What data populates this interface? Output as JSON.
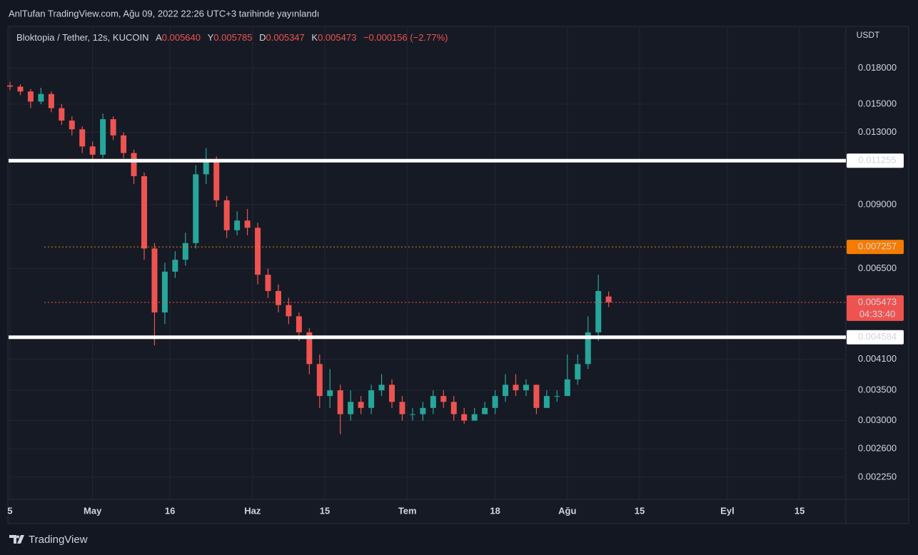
{
  "header": {
    "publisher": "AnlTufan TradingView.com, Ağu 09, 2022 22:26 UTC+3 tarihinde yayınlandı"
  },
  "footer": {
    "brand": "TradingView"
  },
  "chart_data": {
    "type": "candlestick",
    "symbol": "Bloktopia / Tether, 12s, KUCOIN",
    "legend": {
      "open_label": "A",
      "open": "0.005640",
      "high_label": "Y",
      "high": "0.005785",
      "low_label": "D",
      "low": "0.005347",
      "close_label": "K",
      "close": "0.005473",
      "change": "−0.000156 (−2.77%)"
    },
    "y_unit": "USDT",
    "log_scale": true,
    "grid": true,
    "up_color": "#26a69a",
    "down_color": "#ef5350",
    "x": [
      105,
      107,
      109,
      111,
      113,
      115,
      117,
      119,
      121,
      123,
      125,
      127,
      129,
      131,
      133,
      135,
      137,
      139,
      141,
      143,
      145,
      147,
      149,
      151,
      153,
      155,
      157,
      159,
      161,
      163,
      165,
      167,
      169,
      171,
      173,
      175,
      177,
      179,
      181,
      183,
      185,
      187,
      189,
      191,
      193,
      195,
      197,
      199,
      201,
      203,
      205,
      207,
      209,
      211,
      213,
      215,
      217,
      219,
      221
    ],
    "open": [
      0.0165,
      0.0164,
      0.016,
      0.0152,
      0.0158,
      0.0147,
      0.0138,
      0.0132,
      0.0121,
      0.0116,
      0.0139,
      0.0128,
      0.0117,
      0.0104,
      0.0072,
      0.0052,
      0.0064,
      0.0068,
      0.0074,
      0.0105,
      0.0112,
      0.0092,
      0.0079,
      0.0083,
      0.008,
      0.0063,
      0.0058,
      0.0054,
      0.0051,
      0.0047,
      0.004,
      0.0034,
      0.0035,
      0.0031,
      0.0033,
      0.0032,
      0.0035,
      0.0036,
      0.0033,
      0.0031,
      0.0031,
      0.0032,
      0.0034,
      0.0033,
      0.0031,
      0.003,
      0.0031,
      0.0032,
      0.0034,
      0.0036,
      0.0035,
      0.0036,
      0.0032,
      0.0034,
      0.0034,
      0.0037,
      0.004,
      0.0047,
      0.00564
    ],
    "high": [
      0.0168,
      0.0166,
      0.0162,
      0.0163,
      0.016,
      0.015,
      0.0141,
      0.0134,
      0.0124,
      0.0143,
      0.0141,
      0.013,
      0.0119,
      0.0106,
      0.0074,
      0.0067,
      0.0071,
      0.0078,
      0.011,
      0.012,
      0.0115,
      0.0094,
      0.0087,
      0.0088,
      0.0082,
      0.0065,
      0.006,
      0.0056,
      0.0052,
      0.0048,
      0.0042,
      0.0039,
      0.0036,
      0.0035,
      0.0034,
      0.0036,
      0.0038,
      0.0037,
      0.0034,
      0.0032,
      0.0033,
      0.0035,
      0.0035,
      0.0034,
      0.0032,
      0.0032,
      0.0033,
      0.0035,
      0.0038,
      0.0038,
      0.0037,
      0.0036,
      0.0035,
      0.0035,
      0.0042,
      0.0042,
      0.0051,
      0.0063,
      0.005785
    ],
    "low": [
      0.0161,
      0.0157,
      0.0147,
      0.015,
      0.0144,
      0.0135,
      0.0128,
      0.0117,
      0.0113,
      0.0114,
      0.0125,
      0.0114,
      0.01,
      0.0068,
      0.0044,
      0.0049,
      0.0062,
      0.0066,
      0.0072,
      0.01,
      0.0089,
      0.0076,
      0.0077,
      0.0077,
      0.006,
      0.0056,
      0.0052,
      0.0049,
      0.0045,
      0.0038,
      0.0032,
      0.0032,
      0.0028,
      0.003,
      0.0031,
      0.0031,
      0.0034,
      0.0032,
      0.003,
      0.003,
      0.003,
      0.0031,
      0.0032,
      0.003,
      0.00295,
      0.003,
      0.0031,
      0.0031,
      0.0033,
      0.0034,
      0.0034,
      0.0031,
      0.0032,
      0.0033,
      0.0034,
      0.0036,
      0.0039,
      0.0045,
      0.005347
    ],
    "close": [
      0.0164,
      0.016,
      0.0152,
      0.0158,
      0.0147,
      0.0138,
      0.0132,
      0.0121,
      0.0116,
      0.0139,
      0.0128,
      0.0117,
      0.0104,
      0.0072,
      0.0052,
      0.0064,
      0.0068,
      0.0074,
      0.0105,
      0.0112,
      0.0092,
      0.0079,
      0.0083,
      0.008,
      0.0063,
      0.0058,
      0.0054,
      0.0051,
      0.0047,
      0.004,
      0.0034,
      0.0035,
      0.0031,
      0.0033,
      0.0032,
      0.0035,
      0.0036,
      0.0033,
      0.0031,
      0.0031,
      0.0032,
      0.0034,
      0.0033,
      0.0031,
      0.003,
      0.0031,
      0.0032,
      0.0034,
      0.0036,
      0.0035,
      0.0036,
      0.0032,
      0.0034,
      0.0034,
      0.0037,
      0.004,
      0.0047,
      0.0058,
      0.005473
    ],
    "xlim": [
      104.72,
      266.97
    ],
    "xticks": [
      {
        "value": 105,
        "label": "5"
      },
      {
        "value": 121,
        "label": "May"
      },
      {
        "value": 136,
        "label": "16"
      },
      {
        "value": 152,
        "label": "Haz"
      },
      {
        "value": 166,
        "label": "15"
      },
      {
        "value": 182,
        "label": "Tem"
      },
      {
        "value": 199,
        "label": "18"
      },
      {
        "value": 213,
        "label": "Ağu"
      },
      {
        "value": 227,
        "label": "15"
      },
      {
        "value": 244,
        "label": "Eyl"
      },
      {
        "value": 258,
        "label": "15"
      }
    ],
    "ylim": [
      0.00201,
      0.0222
    ],
    "yticks": [
      {
        "value": 0.018,
        "label": "0.018000"
      },
      {
        "value": 0.015,
        "label": "0.015000"
      },
      {
        "value": 0.013,
        "label": "0.013000"
      },
      {
        "value": 0.009,
        "label": "0.009000"
      },
      {
        "value": 0.0065,
        "label": "0.006500"
      },
      {
        "value": 0.0041,
        "label": "0.004100"
      },
      {
        "value": 0.0035,
        "label": "0.003500"
      },
      {
        "value": 0.003,
        "label": "0.003000"
      },
      {
        "value": 0.0026,
        "label": "0.002600"
      },
      {
        "value": 0.00225,
        "label": "0.002250"
      }
    ],
    "levels": [
      {
        "value": 0.011255,
        "color": "#ffffff",
        "style": "solid"
      },
      {
        "value": 0.007257,
        "color": "#f57c00",
        "style": "dotted"
      },
      {
        "value": 0.005473,
        "color": "#ef5350",
        "style": "dotted",
        "countdown": "04:33:40"
      },
      {
        "value": 0.004584,
        "color": "#ffffff",
        "style": "solid"
      }
    ]
  }
}
